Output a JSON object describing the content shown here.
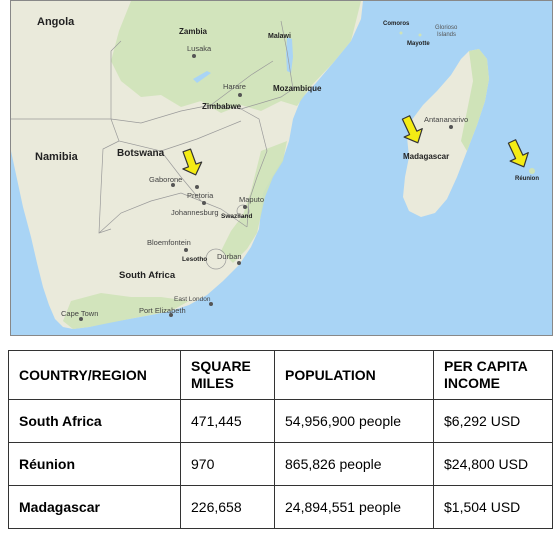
{
  "map": {
    "countries": {
      "angola": "Angola",
      "zambia": "Zambia",
      "malawi": "Malawi",
      "zimbabwe": "Zimbabwe",
      "mozambique": "Mozambique",
      "namibia": "Namibia",
      "botswana": "Botswana",
      "madagascar": "Madagascar",
      "south_africa": "South Africa",
      "lesotho": "Lesotho",
      "swaziland": "Swaziland",
      "comoros": "Comoros",
      "glorioso": "Glorioso",
      "islands": "Islands",
      "mayotte": "Mayotte",
      "reunion": "Réunion"
    },
    "cities": {
      "lusaka": "Lusaka",
      "harare": "Harare",
      "gaborone": "Gaborone",
      "pretoria": "Pretoria",
      "johannesburg": "Johannesburg",
      "maputo": "Maputo",
      "antananarivo": "Antananarivo",
      "bloemfontein": "Bloemfontein",
      "durban": "Durban",
      "east_london": "East London",
      "port_elizabeth": "Port Elizabeth",
      "cape_town": "Cape Town"
    },
    "colors": {
      "water": "#a9d4f5",
      "land": "#eaeadb",
      "green": "#cfe3b8",
      "arrow": "#f4ec14",
      "arrow_outline": "#333333"
    },
    "arrows": [
      "pretoria-arrow",
      "madagascar-arrow",
      "reunion-arrow"
    ]
  },
  "table": {
    "headers": [
      "COUNTRY/REGION",
      "SQUARE MILES",
      "POPULATION",
      "PER CAPITA INCOME"
    ],
    "rows": [
      [
        "South Africa",
        "471,445",
        "54,956,900 people",
        "$6,292 USD"
      ],
      [
        "Réunion",
        "970",
        "865,826 people",
        "$24,800 USD"
      ],
      [
        "Madagascar",
        "226,658",
        "24,894,551 people",
        "$1,504 USD"
      ]
    ]
  }
}
